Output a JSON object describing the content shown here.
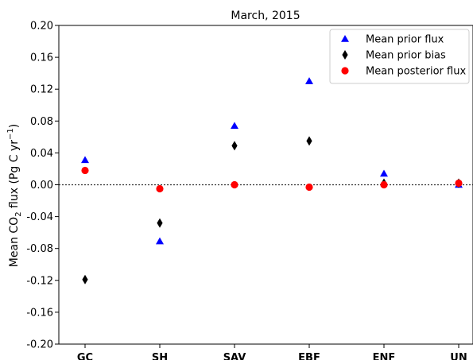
{
  "chart_data": {
    "type": "scatter",
    "title": "March, 2015",
    "ylabel": {
      "prefix": "Mean CO",
      "sub": "2",
      "middle": " flux (Pg C yr",
      "sup": "−1",
      "suffix": ")"
    },
    "xlabel": "",
    "categories": [
      "GC",
      "SH",
      "SAV",
      "EBF",
      "ENF",
      "UN"
    ],
    "ylim": [
      -0.2,
      0.2
    ],
    "yticks": [
      0.2,
      0.16,
      0.12,
      0.08,
      0.04,
      0.0,
      -0.04,
      -0.08,
      -0.12,
      -0.16,
      -0.2
    ],
    "ytick_labels": [
      "0.20",
      "0.16",
      "0.12",
      "0.08",
      "0.04",
      "0.00",
      "-0.04",
      "-0.08",
      "-0.12",
      "-0.16",
      "-0.20"
    ],
    "reference_line": {
      "y": 0.0,
      "style": "dotted"
    },
    "grid": false,
    "legend_position": "top-right",
    "series": [
      {
        "name": "Mean prior flux",
        "marker": "triangle",
        "color": "#0000ff",
        "values": [
          0.031,
          -0.071,
          0.074,
          0.13,
          0.014,
          0.0
        ]
      },
      {
        "name": "Mean prior bias",
        "marker": "diamond",
        "color": "#000000",
        "values": [
          -0.119,
          -0.048,
          0.049,
          0.055,
          0.002,
          0.002
        ]
      },
      {
        "name": "Mean posterior flux",
        "marker": "circle",
        "color": "#ff0000",
        "values": [
          0.018,
          -0.005,
          0.0,
          -0.003,
          0.0,
          0.002
        ]
      }
    ]
  }
}
